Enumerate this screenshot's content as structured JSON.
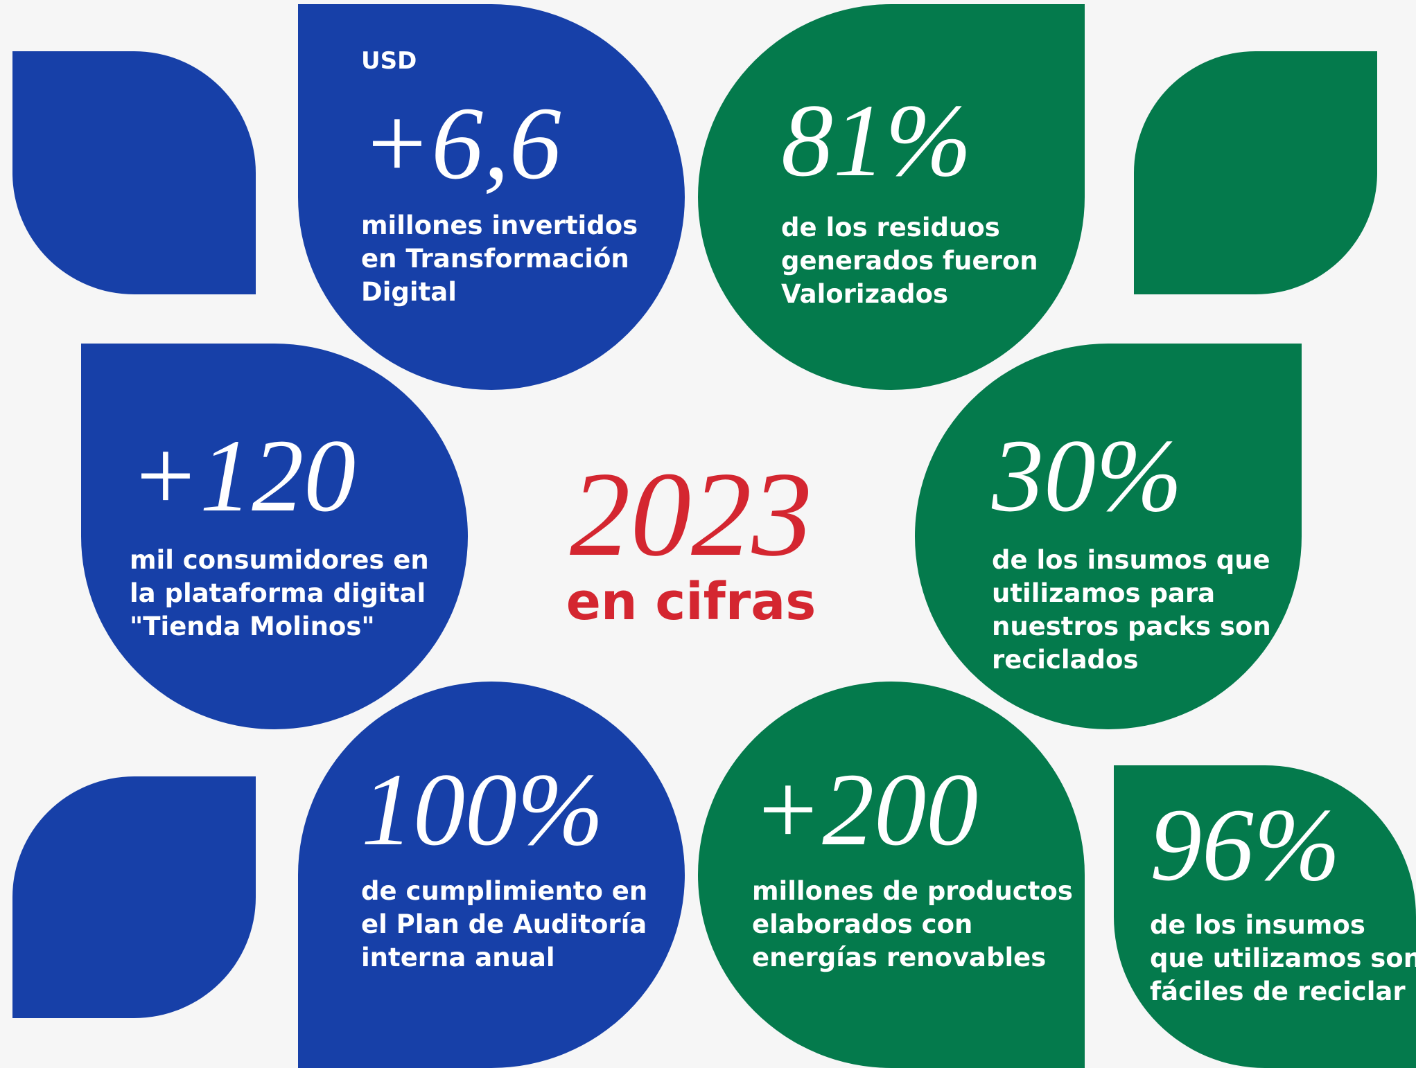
{
  "title": {
    "year": "2023",
    "subtitle": "en cifras"
  },
  "cards": [
    {
      "prefix": "USD",
      "big": "+6,6",
      "lines": [
        "millones invertidos",
        "en Transformación",
        "Digital"
      ]
    },
    {
      "big": "81%",
      "lines": [
        "de los residuos",
        "generados fueron",
        "Valorizados"
      ]
    },
    {
      "big": "+120",
      "lines": [
        "mil consumidores en",
        "la plataforma digital",
        "\"Tienda Molinos\""
      ]
    },
    {
      "big": "30%",
      "lines": [
        "de los insumos que",
        "utilizamos para",
        "nuestros packs son",
        "reciclados"
      ]
    },
    {
      "big": "100%",
      "lines": [
        "de cumplimiento en",
        "el Plan de Auditoría",
        "interna anual"
      ]
    },
    {
      "big": "+200",
      "lines": [
        "millones de productos",
        "elaborados con",
        "energías renovables"
      ]
    },
    {
      "big": "96%",
      "lines": [
        "de los insumos",
        "que utilizamos son",
        "fáciles de reciclar"
      ]
    }
  ]
}
